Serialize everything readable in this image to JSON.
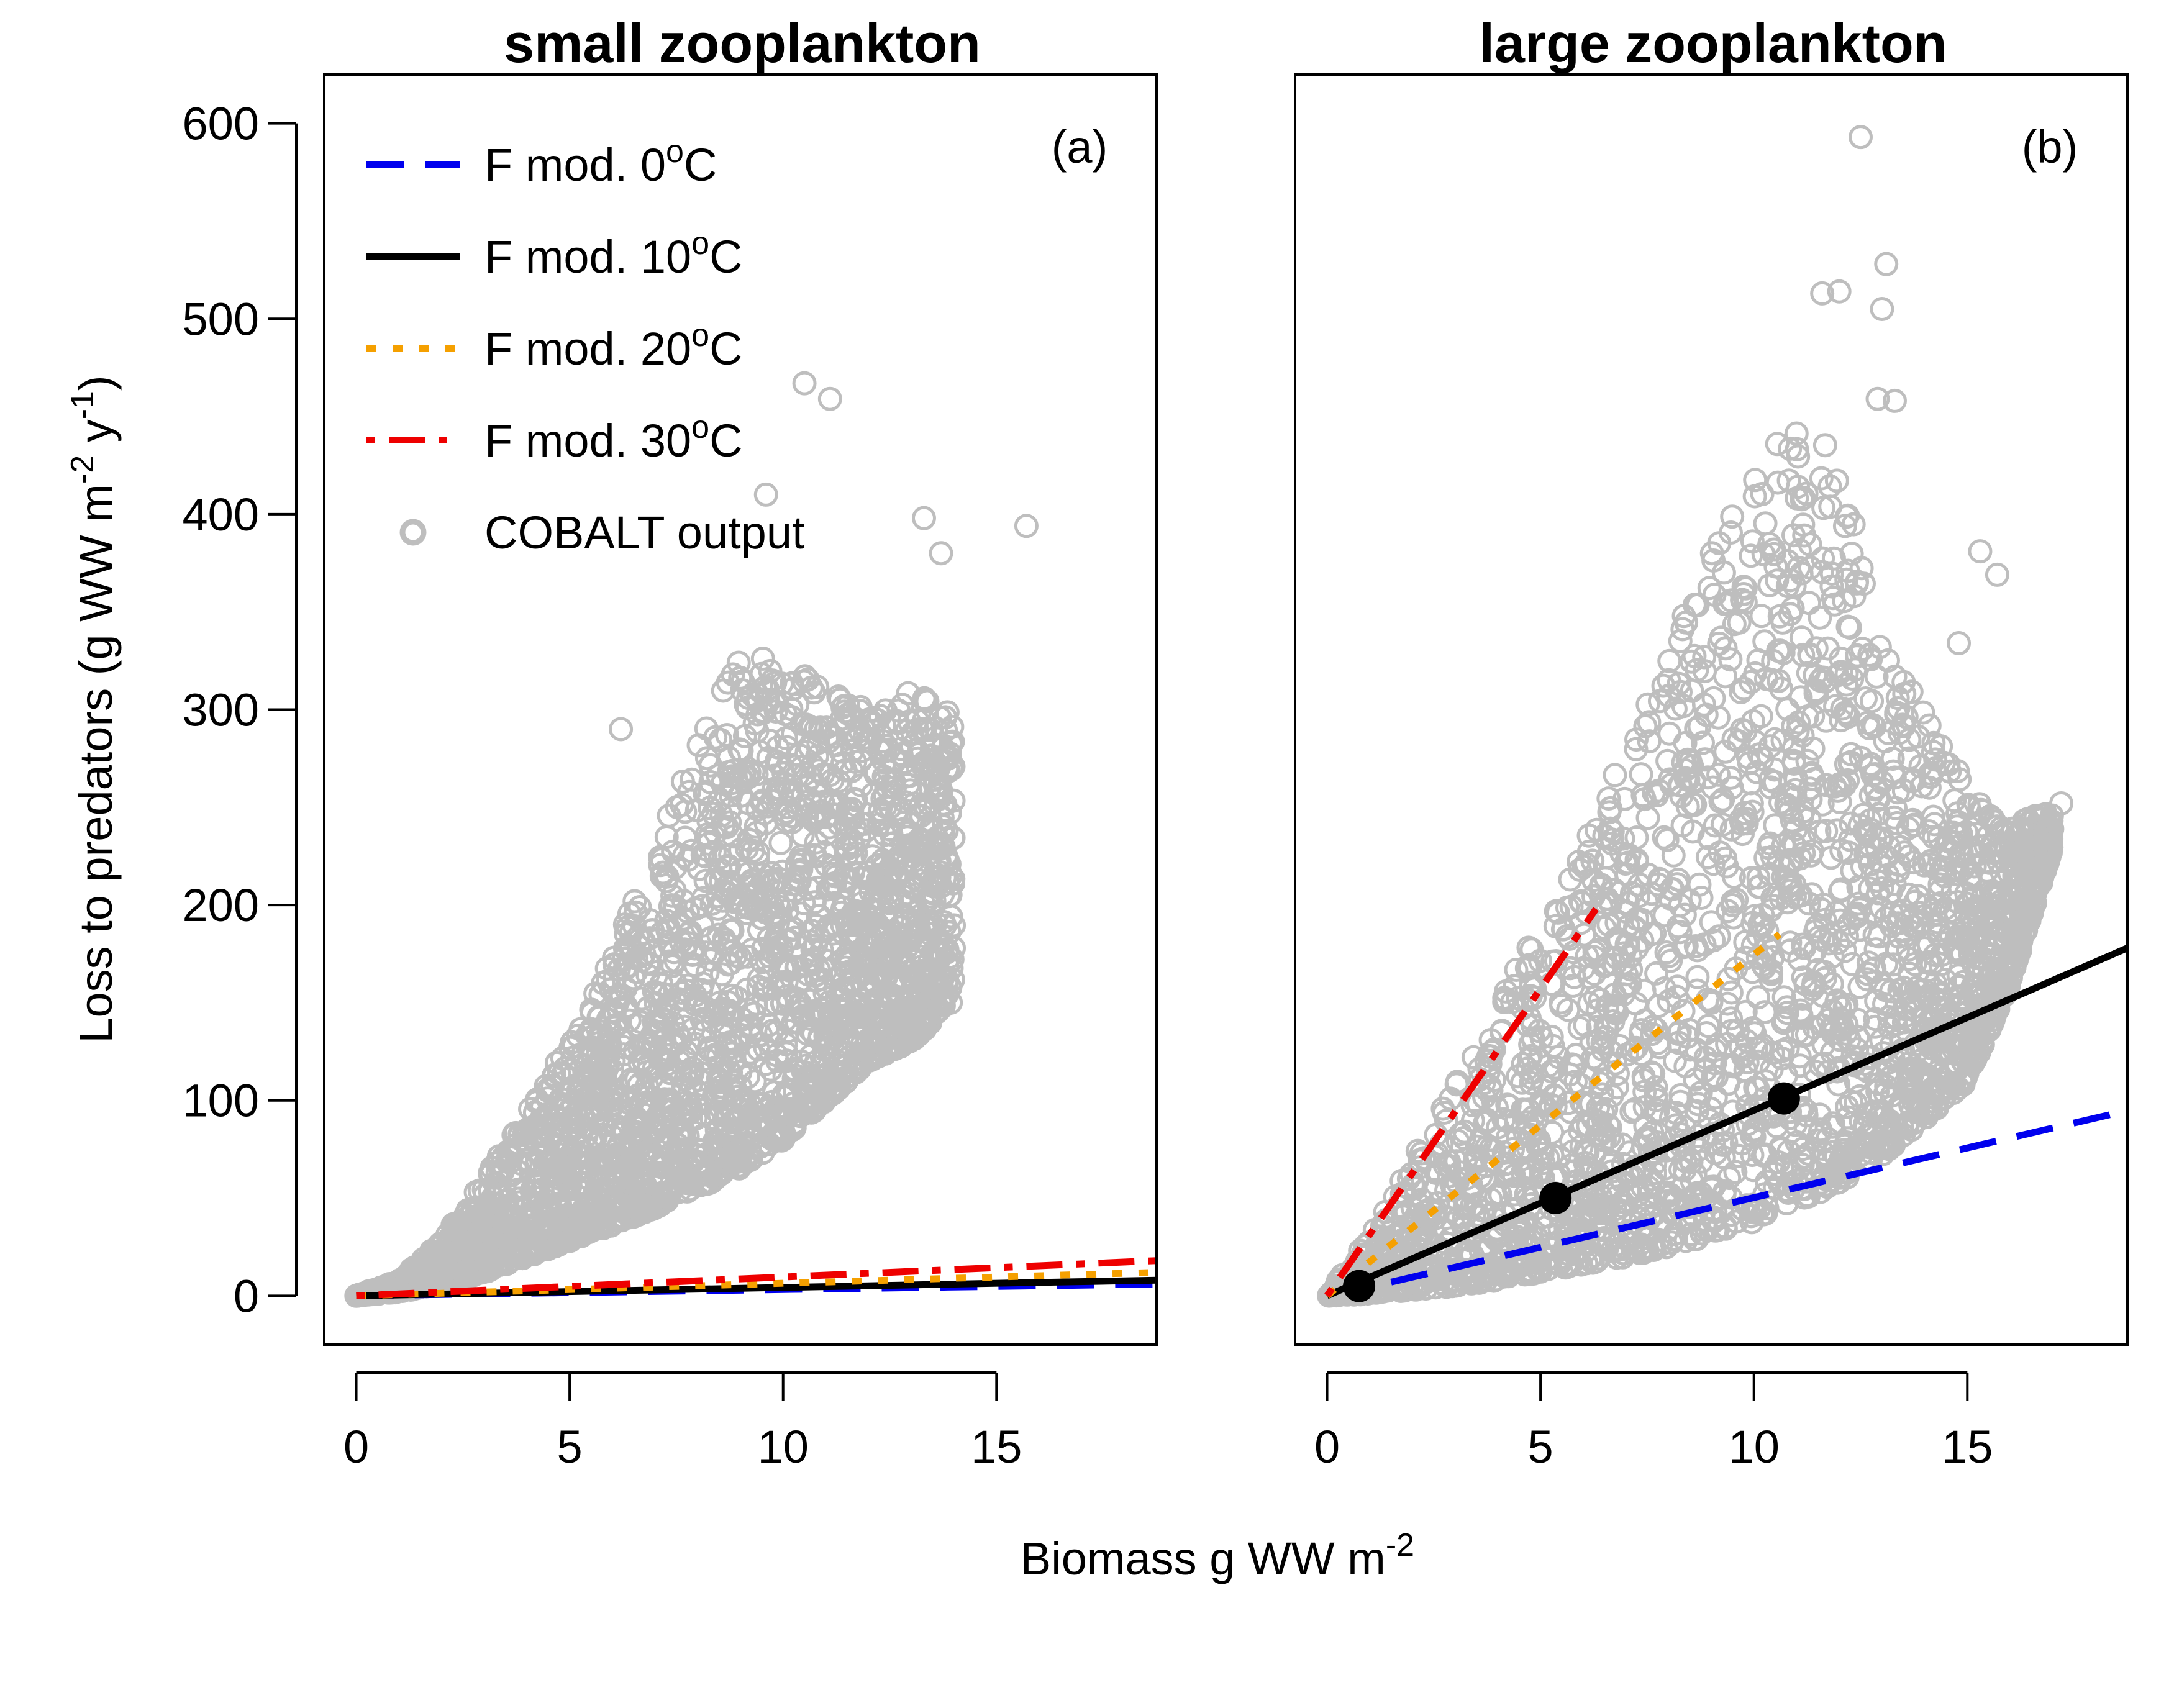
{
  "figure": {
    "xlabel": "Biomass g WW m",
    "xlabel_sup": "-2",
    "ylabel_parts": [
      "Loss to predators (g WW m",
      "-2",
      " y",
      "-1",
      ")"
    ]
  },
  "legend": {
    "items": [
      {
        "text": "F mod. 0",
        "sup": "o",
        "suffix": "C",
        "color": "#0000ee",
        "style": "dashed"
      },
      {
        "text": "F mod. 10",
        "sup": "o",
        "suffix": "C",
        "color": "#000000",
        "style": "solid"
      },
      {
        "text": "F mod. 20",
        "sup": "o",
        "suffix": "C",
        "color": "#f5a000",
        "style": "dotted"
      },
      {
        "text": "F mod. 30",
        "sup": "o",
        "suffix": "C",
        "color": "#ee0000",
        "style": "dotdash"
      },
      {
        "text": "COBALT output",
        "sup": "",
        "suffix": "",
        "color": "#bebebe",
        "style": "points"
      }
    ]
  },
  "chart_data": [
    {
      "type": "scatter",
      "title": "small zooplankton",
      "panel_label": "(a)",
      "xlim": [
        -0.75,
        18.75
      ],
      "ylim": [
        -25,
        625
      ],
      "xticks": [
        0,
        5,
        10,
        15
      ],
      "yticks": [
        0,
        100,
        200,
        300,
        400,
        500,
        600
      ],
      "grid": false,
      "legend_position": "top-left",
      "scatter_series": {
        "name": "COBALT output",
        "color": "#bebebe",
        "envelope_upper": [
          [
            0,
            0
          ],
          [
            1,
            8
          ],
          [
            2,
            28
          ],
          [
            3,
            60
          ],
          [
            4,
            95
          ],
          [
            5,
            130
          ],
          [
            6,
            175
          ],
          [
            7,
            230
          ],
          [
            8,
            290
          ],
          [
            9,
            330
          ],
          [
            10,
            325
          ],
          [
            11,
            310
          ],
          [
            12,
            300
          ],
          [
            13,
            310
          ],
          [
            14,
            300
          ]
        ],
        "envelope_lower": [
          [
            0,
            0
          ],
          [
            1,
            2
          ],
          [
            2,
            6
          ],
          [
            3,
            12
          ],
          [
            4,
            20
          ],
          [
            5,
            28
          ],
          [
            6,
            36
          ],
          [
            7,
            45
          ],
          [
            8,
            55
          ],
          [
            9,
            65
          ],
          [
            10,
            80
          ],
          [
            11,
            100
          ],
          [
            12,
            120
          ],
          [
            13,
            130
          ],
          [
            14,
            150
          ]
        ],
        "outliers": [
          [
            6.2,
            290
          ],
          [
            9.6,
            410
          ],
          [
            10.5,
            467
          ],
          [
            11.1,
            459
          ],
          [
            13.3,
            398
          ],
          [
            13.7,
            380
          ],
          [
            15.7,
            394
          ],
          [
            13.5,
            232
          ],
          [
            14.0,
            178
          ]
        ]
      },
      "lines": [
        {
          "name": "F mod. 0oC",
          "color": "#0000ee",
          "style": "dashed",
          "x": [
            0,
            18.75
          ],
          "y": [
            0,
            6
          ]
        },
        {
          "name": "F mod. 10oC",
          "color": "#000000",
          "style": "solid",
          "x": [
            0,
            18.75
          ],
          "y": [
            0,
            8
          ]
        },
        {
          "name": "F mod. 20oC",
          "color": "#f5a000",
          "style": "dotted",
          "x": [
            0,
            18.75
          ],
          "y": [
            0,
            12
          ]
        },
        {
          "name": "F mod. 30oC",
          "color": "#ee0000",
          "style": "dotdash",
          "x": [
            0,
            18.75
          ],
          "y": [
            0,
            18
          ]
        }
      ],
      "points": []
    },
    {
      "type": "scatter",
      "title": "large zooplankton",
      "panel_label": "(b)",
      "xlim": [
        -0.75,
        18.75
      ],
      "ylim": [
        -25,
        625
      ],
      "xticks": [
        0,
        5,
        10,
        15
      ],
      "yticks": [],
      "grid": false,
      "legend_position": "",
      "scatter_series": {
        "name": "COBALT output",
        "color": "#bebebe",
        "envelope_upper": [
          [
            0,
            0
          ],
          [
            1,
            30
          ],
          [
            2,
            70
          ],
          [
            3,
            110
          ],
          [
            4,
            150
          ],
          [
            5,
            190
          ],
          [
            6,
            230
          ],
          [
            7,
            280
          ],
          [
            8,
            330
          ],
          [
            9,
            380
          ],
          [
            10,
            420
          ],
          [
            11,
            450
          ],
          [
            12,
            430
          ],
          [
            13,
            330
          ],
          [
            14,
            300
          ],
          [
            15,
            260
          ],
          [
            16,
            240
          ],
          [
            17,
            250
          ]
        ],
        "envelope_lower": [
          [
            0,
            0
          ],
          [
            1,
            1
          ],
          [
            2,
            3
          ],
          [
            3,
            5
          ],
          [
            4,
            8
          ],
          [
            5,
            12
          ],
          [
            6,
            16
          ],
          [
            7,
            20
          ],
          [
            8,
            25
          ],
          [
            9,
            31
          ],
          [
            10,
            38
          ],
          [
            11,
            47
          ],
          [
            12,
            58
          ],
          [
            13,
            72
          ],
          [
            14,
            90
          ],
          [
            15,
            110
          ],
          [
            16,
            160
          ],
          [
            17,
            230
          ]
        ],
        "outliers": [
          [
            12.5,
            593
          ],
          [
            13.1,
            528
          ],
          [
            12.0,
            514
          ],
          [
            11.6,
            513
          ],
          [
            13.0,
            505
          ],
          [
            13.3,
            458
          ],
          [
            12.9,
            459
          ],
          [
            15.3,
            381
          ],
          [
            15.7,
            369
          ],
          [
            17.2,
            252
          ],
          [
            14.8,
            334
          ]
        ]
      },
      "lines": [
        {
          "name": "F mod. 0oC",
          "color": "#0000ee",
          "style": "dashed",
          "x": [
            1.5,
            18.4
          ],
          "y": [
            7,
            93
          ]
        },
        {
          "name": "F mod. 10oC",
          "color": "#000000",
          "style": "solid",
          "x": [
            0,
            18.75
          ],
          "y": [
            0,
            178
          ]
        },
        {
          "name": "F mod. 20oC",
          "color": "#f5a000",
          "style": "dotted",
          "x": [
            0,
            10.6
          ],
          "y": [
            0,
            185
          ]
        },
        {
          "name": "F mod. 30oC",
          "color": "#ee0000",
          "style": "dotdash",
          "x": [
            0,
            6.3
          ],
          "y": [
            0,
            198
          ]
        }
      ],
      "points": [
        {
          "x": 0.75,
          "y": 5
        },
        {
          "x": 5.35,
          "y": 50
        },
        {
          "x": 10.7,
          "y": 101
        }
      ]
    }
  ]
}
